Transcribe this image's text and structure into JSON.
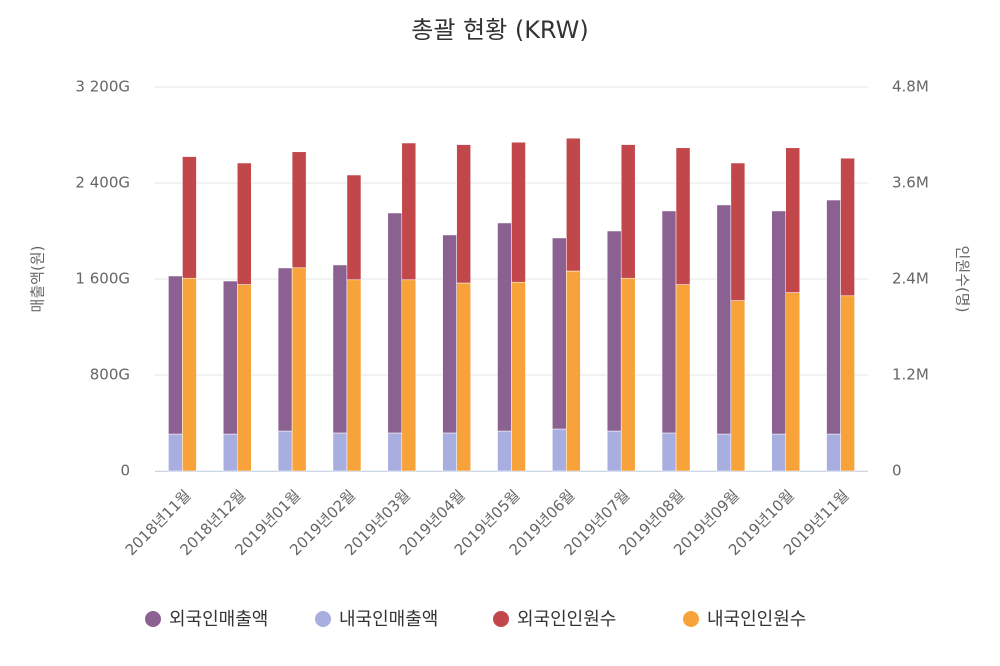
{
  "chart_data": {
    "type": "bar",
    "title": "총괄 현황 (KRW)",
    "y_label": "매출액(원)",
    "y2_label": "인원수(명)",
    "categories": [
      "2018년11월",
      "2018년12월",
      "2019년01월",
      "2019년02월",
      "2019년03월",
      "2019년04월",
      "2019년05월",
      "2019년06월",
      "2019년07월",
      "2019년08월",
      "2019년09월",
      "2019년10월",
      "2019년11월"
    ],
    "series": [
      {
        "name": "외국인매출액",
        "color": "#8b6191",
        "axis": "y",
        "values": [
          1317,
          1275,
          1359,
          1400,
          1833,
          1650,
          1734,
          1592,
          1667,
          1850,
          1909,
          1859,
          1950
        ]
      },
      {
        "name": "내국인매출액",
        "color": "#a9aee0",
        "axis": "y",
        "values": [
          308,
          308,
          333,
          317,
          317,
          317,
          333,
          350,
          333,
          317,
          308,
          308,
          308
        ]
      },
      {
        "name": "외국인인원수",
        "color": "#c2474b",
        "axis": "y2",
        "values": [
          1.52,
          1.52,
          1.45,
          1.31,
          1.71,
          1.73,
          1.75,
          1.66,
          1.67,
          1.71,
          1.72,
          1.81,
          1.72
        ]
      },
      {
        "name": "내국인인원수",
        "color": "#f7a33a",
        "axis": "y2",
        "values": [
          2.41,
          2.33,
          2.54,
          2.39,
          2.39,
          2.35,
          2.36,
          2.5,
          2.41,
          2.33,
          2.13,
          2.23,
          2.19
        ]
      }
    ],
    "ylim": [
      0,
      3200
    ],
    "yticks": [
      0,
      {
        "value": 800,
        "label": "800G"
      },
      {
        "value": 1600,
        "label": "1 600G"
      },
      {
        "value": 2400,
        "label": "2 400G"
      },
      {
        "value": 3200,
        "label": "3 200G"
      }
    ],
    "y2lim": [
      0,
      4.8
    ],
    "y2ticks": [
      0,
      {
        "value": 1.2,
        "label": "1.2M"
      },
      {
        "value": 2.4,
        "label": "2.4M"
      },
      {
        "value": 3.6,
        "label": "3.6M"
      },
      {
        "value": 4.8,
        "label": "4.8M"
      }
    ],
    "grid": true,
    "legend": "bottom"
  }
}
